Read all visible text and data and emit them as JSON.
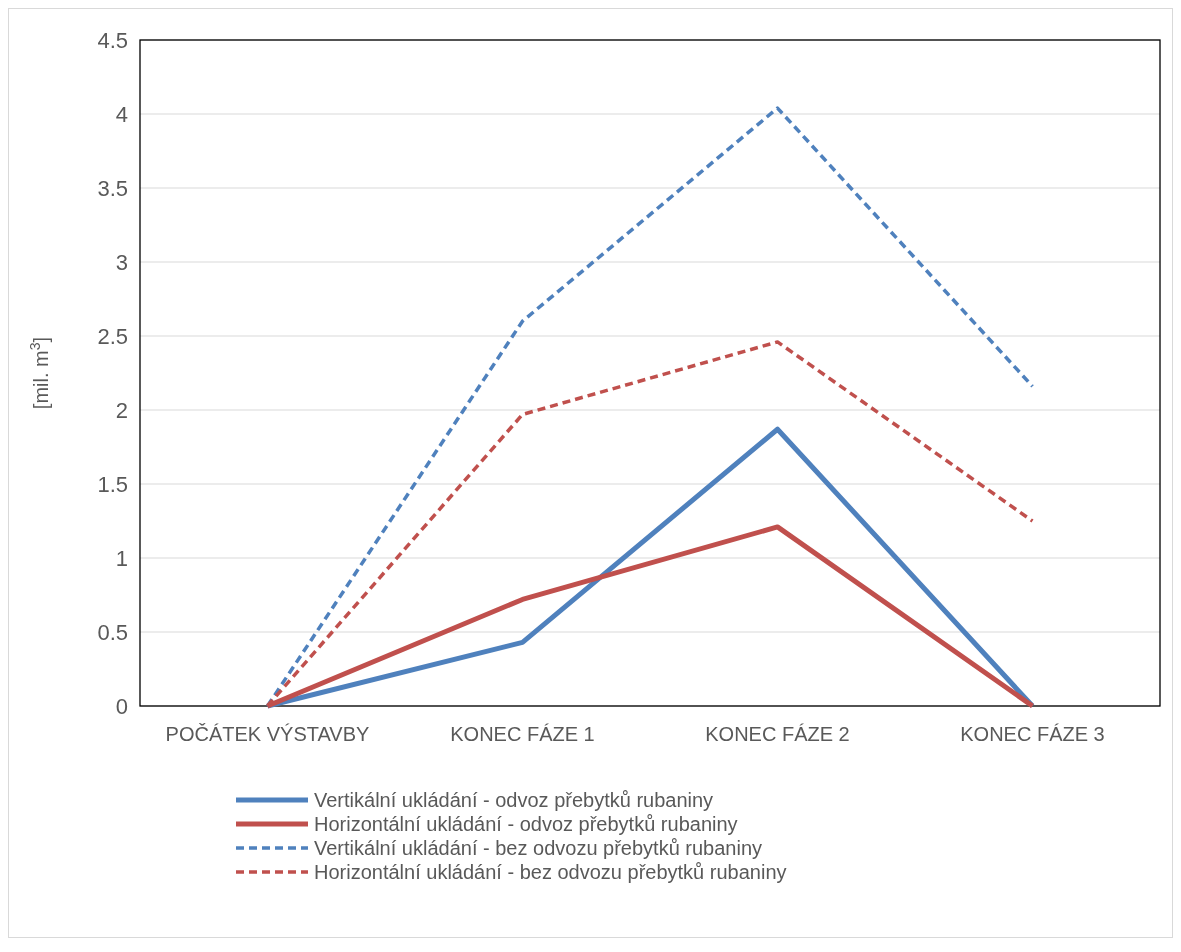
{
  "chart_data": {
    "type": "line",
    "ylabel": "[mil. m$^{3}$]",
    "categories": [
      "POČÁTEK VÝSTAVBY",
      "KONEC FÁZE 1",
      "KONEC FÁZE 2",
      "KONEC FÁZE 3"
    ],
    "series": [
      {
        "name": "Vertikální ukládání - odvoz přebytků rubaniny",
        "color": "#4f81bd",
        "line_style": "solid",
        "values": [
          0,
          0.43,
          1.87,
          0
        ]
      },
      {
        "name": "Horizontální ukládání - odvoz přebytků rubaniny",
        "color": "#c0504d",
        "line_style": "solid",
        "values": [
          0,
          0.72,
          1.21,
          0
        ]
      },
      {
        "name": "Vertikální ukládání - bez odvozu přebytků rubaniny",
        "color": "#4f81bd",
        "line_style": "dashed",
        "values": [
          0,
          2.6,
          4.04,
          2.16
        ]
      },
      {
        "name": "Horizontální ukládání - bez odvozu přebytků rubaniny",
        "color": "#c0504d",
        "line_style": "dashed",
        "values": [
          0,
          1.97,
          2.46,
          1.25
        ]
      }
    ],
    "ylim": [
      0,
      4.5
    ],
    "yticks": [
      0,
      0.5,
      1,
      1.5,
      2,
      2.5,
      3,
      3.5,
      4,
      4.5
    ],
    "grid": "y",
    "legend": "bottom",
    "marker": "none"
  }
}
